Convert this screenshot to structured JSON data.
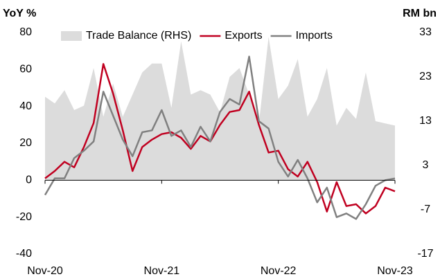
{
  "chart_data": {
    "type": "line",
    "y_label": "YoY %",
    "y2_label": "RM bn",
    "categories": [
      "Nov-20",
      null,
      null,
      null,
      null,
      null,
      null,
      null,
      null,
      null,
      null,
      null,
      "Nov-21",
      null,
      null,
      null,
      null,
      null,
      null,
      null,
      null,
      null,
      null,
      null,
      "Nov-22",
      null,
      null,
      null,
      null,
      null,
      null,
      null,
      null,
      null,
      null,
      null,
      "Nov-23"
    ],
    "series": [
      {
        "name": "Trade Balance (RHS)",
        "kind": "area",
        "axis": "y2",
        "color": "#dcdcdc",
        "values": [
          18.5,
          17,
          20,
          15.5,
          16.5,
          25,
          14,
          21.5,
          14,
          19,
          24,
          26,
          26,
          16,
          31,
          19,
          20,
          19,
          15,
          23,
          25,
          19,
          12.5,
          32,
          18,
          21,
          27,
          14,
          18,
          25,
          12,
          16,
          13.5,
          24,
          13,
          12.5,
          12
        ]
      },
      {
        "name": "Exports",
        "kind": "line",
        "color": "#c00020",
        "values": [
          1,
          5,
          10,
          7,
          18,
          31,
          63,
          47,
          27,
          5,
          18,
          22,
          25,
          26,
          23,
          17,
          24,
          21,
          30,
          37,
          38,
          48,
          30,
          15,
          16,
          6,
          2,
          10,
          -1,
          -17,
          -1,
          -14,
          -13,
          -18,
          -14,
          -4,
          -6
        ]
      },
      {
        "name": "Imports",
        "kind": "line",
        "color": "#808080",
        "values": [
          -8,
          1,
          1,
          12,
          16,
          21,
          48,
          35,
          22,
          13,
          26,
          27,
          38,
          24,
          27,
          18,
          29,
          21,
          37,
          44,
          41,
          67,
          32,
          28,
          10,
          2,
          11,
          1,
          -12,
          -4,
          -20,
          -18,
          -21,
          -13,
          -3,
          0,
          1
        ]
      }
    ],
    "ylim": [
      -40,
      80
    ],
    "yticks": [
      -40,
      -20,
      0,
      20,
      40,
      60,
      80
    ],
    "y2lim": [
      -17,
      33
    ],
    "y2ticks": [
      -17,
      -7,
      3,
      13,
      23,
      33
    ]
  }
}
